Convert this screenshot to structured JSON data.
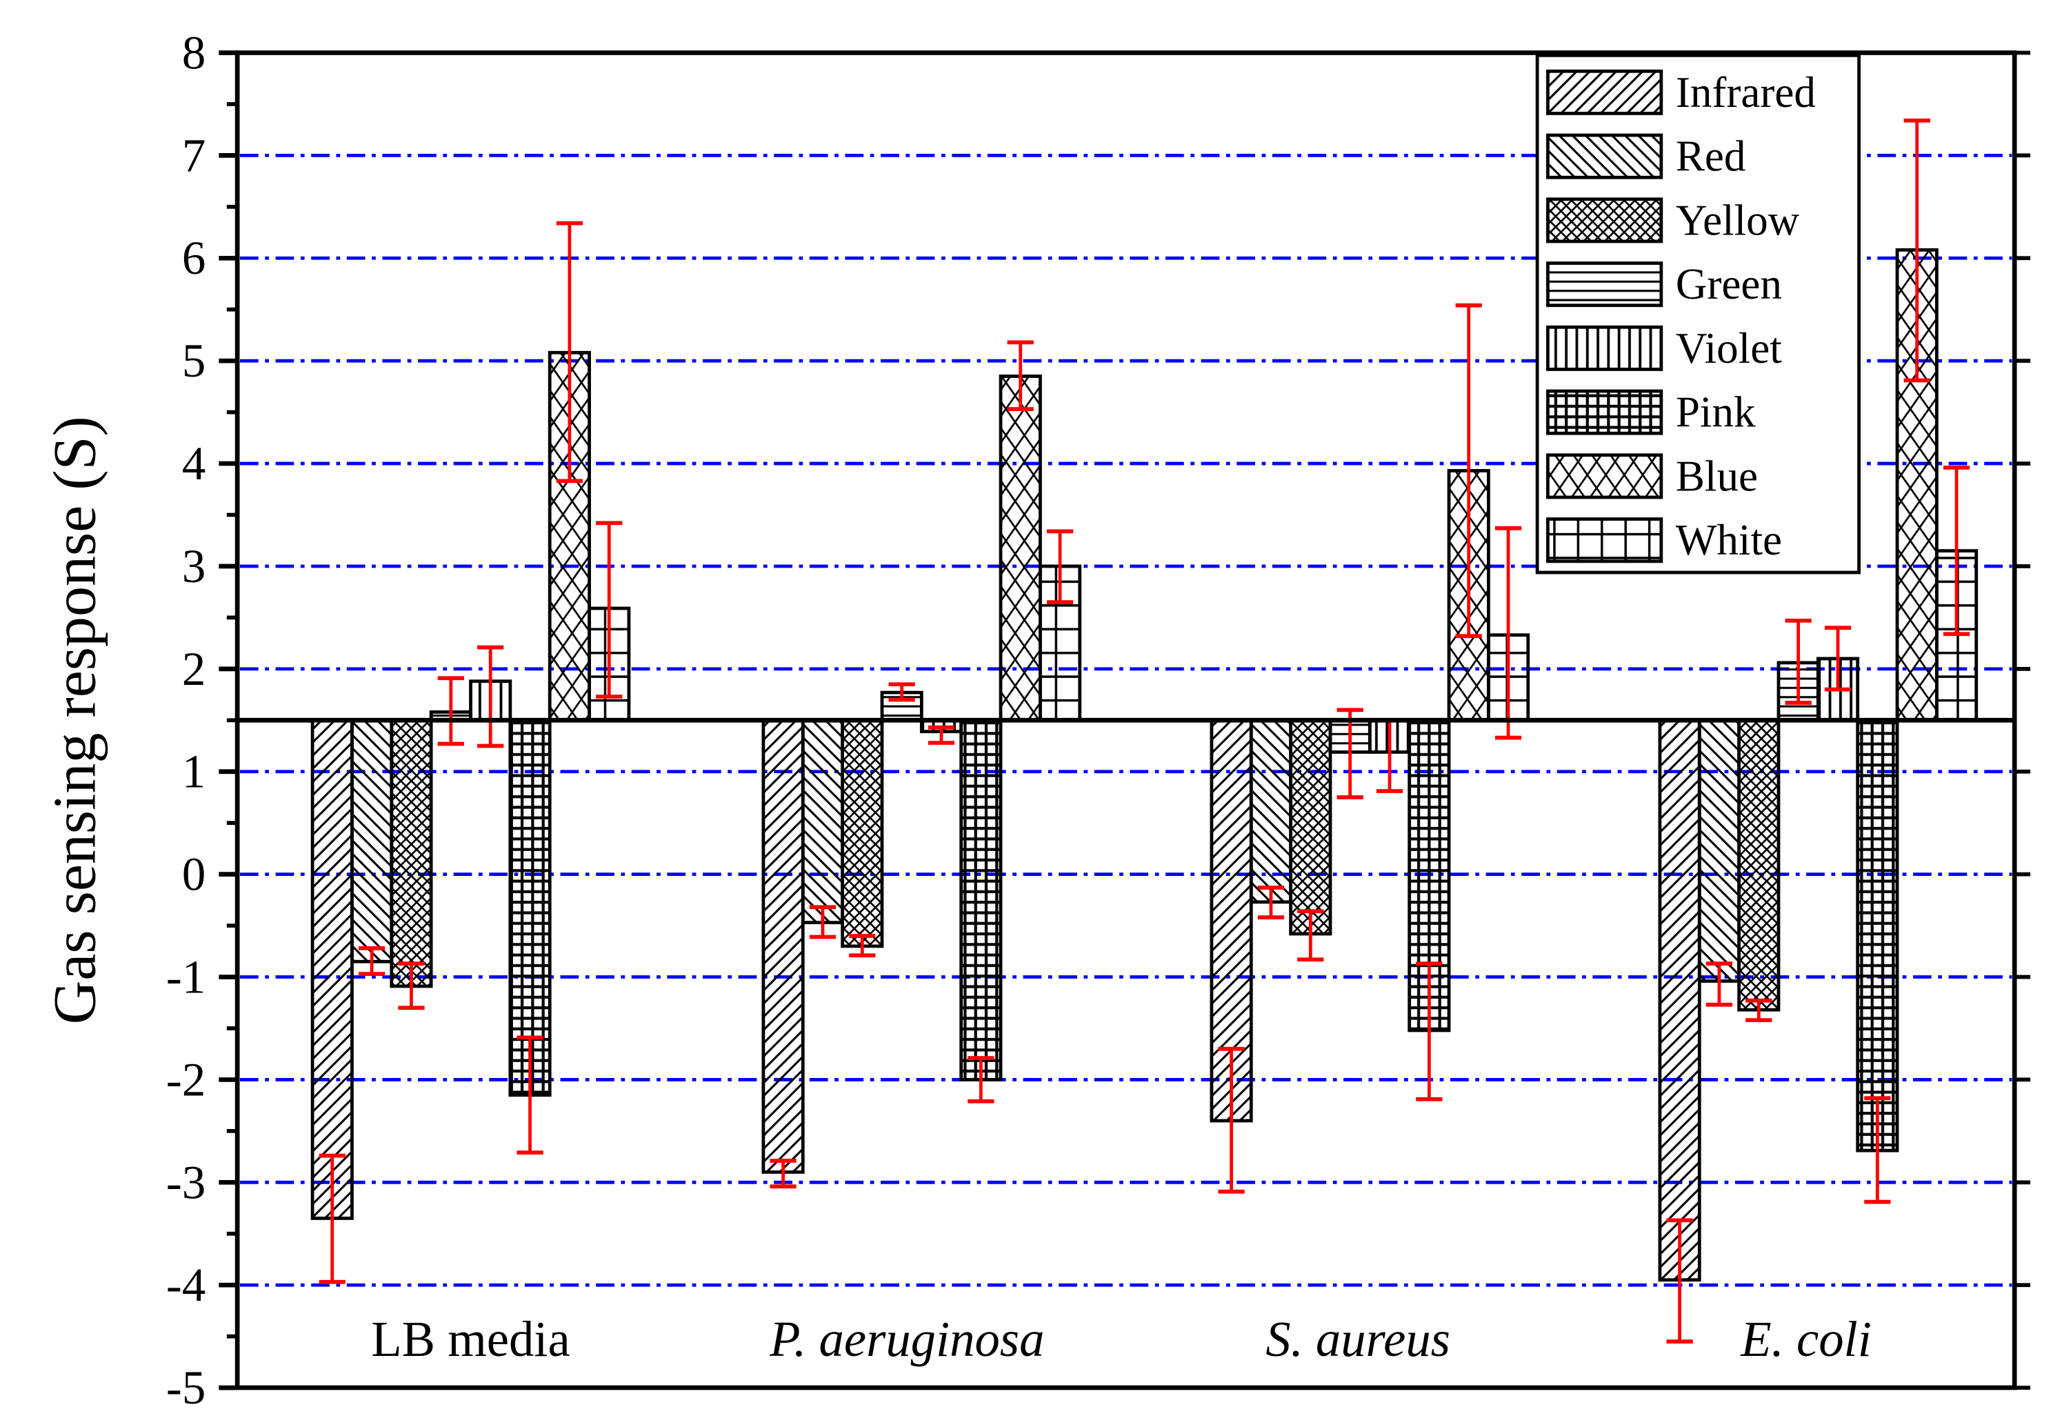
{
  "chart_data": {
    "type": "bar",
    "title": "",
    "xlabel": "",
    "ylabel": "Gas sensing response (S)",
    "ylim": [
      -5,
      8
    ],
    "baseline": 1.5,
    "yticks": [
      8,
      7,
      6,
      5,
      4,
      3,
      2,
      1,
      0,
      -1,
      -2,
      -3,
      -4,
      -5
    ],
    "grid": "horizontal dash-dot blue",
    "legend_position": "upper right",
    "categories": [
      "LB media",
      "P. aeruginosa",
      "S. aureus",
      "E. coli"
    ],
    "category_italic": [
      false,
      true,
      true,
      true
    ],
    "series": [
      {
        "name": "Infrared",
        "pattern": "diag-right",
        "values": [
          -3.35,
          -2.9,
          -2.4,
          -3.95
        ],
        "err_low": [
          -3.97,
          -3.04,
          -3.09,
          -4.55
        ],
        "err_high": [
          -2.74,
          -2.79,
          -1.7,
          -3.37
        ]
      },
      {
        "name": "Red",
        "pattern": "diag-left",
        "values": [
          -0.85,
          -0.47,
          -0.27,
          -1.04
        ],
        "err_low": [
          -0.97,
          -0.61,
          -0.42,
          -1.27
        ],
        "err_high": [
          -0.72,
          -0.32,
          -0.13,
          -0.87
        ]
      },
      {
        "name": "Yellow",
        "pattern": "fine-cross",
        "values": [
          -1.09,
          -0.7,
          -0.58,
          -1.32
        ],
        "err_low": [
          -1.3,
          -0.79,
          -0.83,
          -1.42
        ],
        "err_high": [
          -0.87,
          -0.6,
          -0.36,
          -1.23
        ]
      },
      {
        "name": "Green",
        "pattern": "horizontal",
        "values": [
          1.58,
          1.77,
          1.19,
          2.06
        ],
        "err_low": [
          1.27,
          1.7,
          0.75,
          1.67
        ],
        "err_high": [
          1.91,
          1.85,
          1.6,
          2.47
        ]
      },
      {
        "name": "Violet",
        "pattern": "vertical",
        "values": [
          1.88,
          1.39,
          1.19,
          2.1
        ],
        "err_low": [
          1.25,
          1.28,
          0.81,
          1.8
        ],
        "err_high": [
          2.21,
          1.43,
          1.5,
          2.4
        ]
      },
      {
        "name": "Pink",
        "pattern": "grid-fine",
        "values": [
          -2.15,
          -2.0,
          -1.52,
          -2.69
        ],
        "err_low": [
          -2.71,
          -2.21,
          -2.19,
          -3.19
        ],
        "err_high": [
          -1.59,
          -1.79,
          -0.87,
          -2.18
        ]
      },
      {
        "name": "Blue",
        "pattern": "coarse-cross",
        "values": [
          5.08,
          4.85,
          3.93,
          6.08
        ],
        "err_low": [
          3.83,
          4.53,
          2.32,
          4.81
        ],
        "err_high": [
          6.34,
          5.18,
          5.54,
          7.34
        ]
      },
      {
        "name": "White",
        "pattern": "grid-coarse",
        "values": [
          2.59,
          3.0,
          2.33,
          3.15
        ],
        "err_low": [
          1.73,
          2.65,
          1.33,
          2.34
        ],
        "err_high": [
          3.42,
          3.34,
          3.37,
          3.96
        ]
      }
    ]
  },
  "colors": {
    "grid": "#0000ff",
    "error_bar": "#ff0000",
    "bar_stroke": "#000000",
    "background": "#ffffff"
  }
}
